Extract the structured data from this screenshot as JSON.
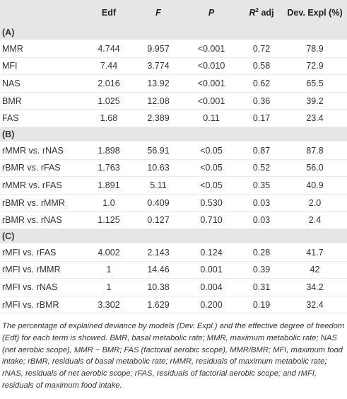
{
  "headers": [
    "",
    "Edf",
    "F",
    "P",
    "R² adj",
    "Dev. Expl (%)"
  ],
  "header_parts": {
    "r": "R",
    "two": "2",
    "adj": " adj"
  },
  "sections": [
    {
      "label": "(A)",
      "rows": [
        [
          "MMR",
          "4.744",
          "9.957",
          "<0.001",
          "0.72",
          "78.9"
        ],
        [
          "MFI",
          "7.44",
          "3.774",
          "<0.010",
          "0.58",
          "72.9"
        ],
        [
          "NAS",
          "2.016",
          "13.92",
          "<0.001",
          "0.62",
          "65.5"
        ],
        [
          "BMR",
          "1.025",
          "12.08",
          "<0.001",
          "0.36",
          "39.2"
        ],
        [
          "FAS",
          "1.68",
          "2.389",
          "0.11",
          "0.17",
          "23.4"
        ]
      ]
    },
    {
      "label": "(B)",
      "rows": [
        [
          "rMMR vs. rNAS",
          "1.898",
          "56.91",
          "<0.05",
          "0.87",
          "87.8"
        ],
        [
          "rBMR vs. rFAS",
          "1.763",
          "10.63",
          "<0.05",
          "0.52",
          "56.0"
        ],
        [
          "rMMR vs. rFAS",
          "1.891",
          "5.11",
          "<0.05",
          "0.35",
          "40.9"
        ],
        [
          "rBMR vs. rMMR",
          "1.0",
          "0.409",
          "0.530",
          "0.03",
          "2.0"
        ],
        [
          "rBMR vs. rNAS",
          "1.125",
          "0.127",
          "0.710",
          "0.03",
          "2.4"
        ]
      ]
    },
    {
      "label": "(C)",
      "rows": [
        [
          "rMFI vs. rFAS",
          "4.002",
          "2.143",
          "0.124",
          "0.28",
          "41.7"
        ],
        [
          "rMFI vs. rMMR",
          "1",
          "14.46",
          "0.001",
          "0.39",
          "42"
        ],
        [
          "rMFI vs. rNAS",
          "1",
          "10.38",
          "0.004",
          "0.31",
          "34.2"
        ],
        [
          "rMFI vs. rBMR",
          "3.302",
          "1.629",
          "0.200",
          "0.19",
          "32.4"
        ]
      ]
    }
  ],
  "footnote": "The percentage of explained deviance by models (Dev. Expl.) and the effective degree of freedom (Edf) for each term is showed. BMR, basal metabolic rate; MMR, maximum metabolic rate; NAS (net aerobic scope), MMR − BMR; FAS (factorial aerobic scope), MMR/BMR; MFI, maximum food intake; rBMR, residuals of basal metabolic rate; rMMR, residuals of maximum metabolic rate; rNAS, residuals of net aerobic scope; rFAS, residuals of factorial aerobic scope; and rMFI, residuals of maximum food intake."
}
